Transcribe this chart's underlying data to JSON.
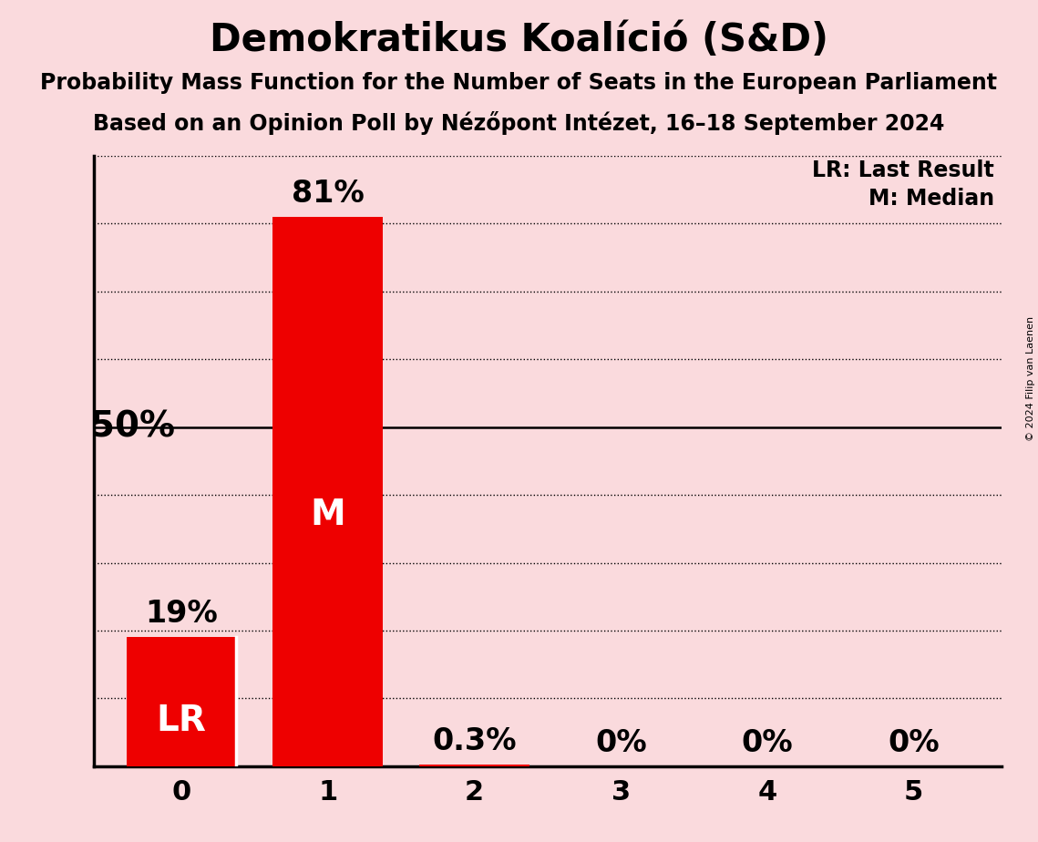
{
  "title": "Demokratikus Koalíció (S&D)",
  "subtitle1": "Probability Mass Function for the Number of Seats in the European Parliament",
  "subtitle2": "Based on an Opinion Poll by Nézőpont Intézet, 16–18 September 2024",
  "copyright": "© 2024 Filip van Laenen",
  "categories": [
    0,
    1,
    2,
    3,
    4,
    5
  ],
  "values": [
    0.19,
    0.81,
    0.003,
    0.0,
    0.0,
    0.0
  ],
  "bar_color": "#EE0000",
  "background_color": "#FADADD",
  "label_50pct": "50%",
  "label_LR": "LR",
  "label_M": "M",
  "legend_lr": "LR: Last Result",
  "legend_m": "M: Median",
  "ylim": [
    0,
    0.9
  ],
  "yticks": [
    0.0,
    0.1,
    0.2,
    0.3,
    0.4,
    0.5,
    0.6,
    0.7,
    0.8,
    0.9
  ],
  "grid_color": "#000000",
  "title_fontsize": 30,
  "subtitle_fontsize": 17,
  "axis_label_fontsize": 22,
  "bar_label_fontsize": 24,
  "inside_label_fontsize": 28,
  "pct_50_fontsize": 28,
  "legend_fontsize": 17,
  "bar_width": 0.75,
  "pct_labels": [
    "19%",
    "81%",
    "0.3%",
    "0%",
    "0%",
    "0%"
  ]
}
